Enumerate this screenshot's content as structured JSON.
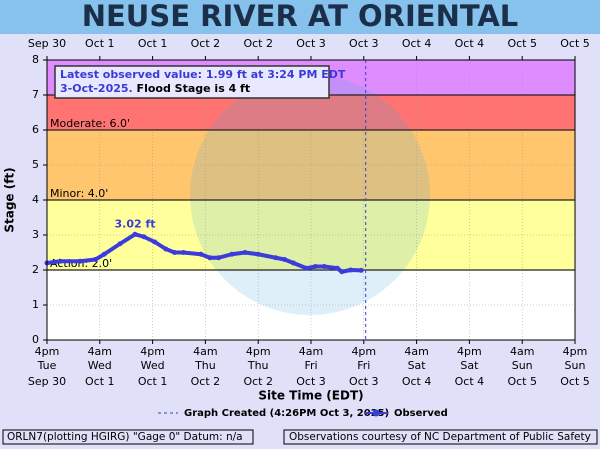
{
  "chart_data": {
    "type": "line",
    "title": "NEUSE RIVER AT ORIENTAL",
    "y_label": "Stage (ft)",
    "x_label": "Site Time (EDT)",
    "xlim": [
      0,
      120
    ],
    "xticks": [
      {
        "value": 0,
        "label": "4pm"
      },
      {
        "value": 12,
        "label": "4am"
      },
      {
        "value": 24,
        "label": "4pm"
      },
      {
        "value": 36,
        "label": "4am"
      },
      {
        "value": 48,
        "label": "4pm"
      },
      {
        "value": 60,
        "label": "4am"
      },
      {
        "value": 72,
        "label": "4pm"
      },
      {
        "value": 84,
        "label": "4am"
      },
      {
        "value": 96,
        "label": "4pm"
      },
      {
        "value": 108,
        "label": "4am"
      },
      {
        "value": 120,
        "label": "4pm"
      }
    ],
    "x_tick_days": [
      "Tue",
      "Wed",
      "Wed",
      "Thu",
      "Thu",
      "Fri",
      "Fri",
      "Sat",
      "Sat",
      "Sun",
      "Sun"
    ],
    "x_tick_dates": [
      "Sep 30",
      "Oct 1",
      "Oct 1",
      "Oct 2",
      "Oct 2",
      "Oct 3",
      "Oct 3",
      "Oct 4",
      "Oct 4",
      "Oct 5",
      "Oct 5"
    ],
    "top_tick_labels": [
      "Sep 30",
      "Oct 1",
      "Oct 1",
      "Oct 2",
      "Oct 2",
      "Oct 3",
      "Oct 3",
      "Oct 4",
      "Oct 4",
      "Oct 5",
      "Oct 5"
    ],
    "ylim": [
      0,
      8
    ],
    "yticks": [
      0,
      1,
      2,
      3,
      4,
      5,
      6,
      7,
      8
    ],
    "grid": true,
    "flood_categories": [
      {
        "value": 2,
        "label": "Action: 2.0'",
        "color": "#ffff9c"
      },
      {
        "value": 4,
        "label": "Minor: 4.0'",
        "color": "#ffc66e"
      },
      {
        "value": 6,
        "label": "Moderate: 6.0'",
        "color": "#ff7373"
      },
      {
        "value": 7,
        "color": "#de8cff"
      }
    ],
    "created_line": {
      "x": 72.43,
      "label": "Graph Created (4:26PM Oct 3, 2025)",
      "color": "#3a3ad8"
    },
    "series": [
      {
        "name": "Observed",
        "color": "#3c3cdc",
        "x": [
          0,
          3,
          7.5,
          11,
          13,
          16.6,
          20,
          22,
          24.5,
          27,
          29,
          31,
          35,
          37,
          39,
          42,
          45,
          48,
          52,
          54,
          56,
          59,
          61,
          63,
          66,
          67,
          69,
          71.4
        ],
        "values": [
          2.2,
          2.25,
          2.25,
          2.3,
          2.45,
          2.75,
          3.02,
          2.95,
          2.8,
          2.6,
          2.5,
          2.5,
          2.45,
          2.35,
          2.35,
          2.45,
          2.5,
          2.45,
          2.35,
          2.3,
          2.2,
          2.05,
          2.1,
          2.1,
          2.05,
          1.95,
          2.0,
          1.99
        ],
        "peak_label": "3.02 ft"
      }
    ],
    "annotation": {
      "line1": "Latest observed value: 1.99 ft at 3:24 PM EDT",
      "line2a": "3-Oct-2025.",
      "line2b": " Flood Stage is 4 ft"
    },
    "footer_left": "ORLN7(plotting HGIRG) \"Gage 0\" Datum: n/a",
    "footer_right": "Observations courtesy of NC Department of Public Safety"
  }
}
